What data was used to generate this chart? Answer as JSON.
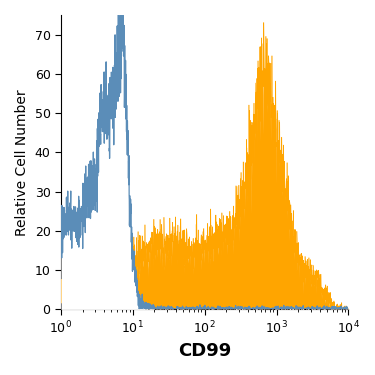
{
  "title": "",
  "xlabel": "CD99",
  "ylabel": "Relative Cell Number",
  "xlim_log": [
    1,
    10000
  ],
  "ylim": [
    0,
    75
  ],
  "yticks": [
    0,
    10,
    20,
    30,
    40,
    50,
    60,
    70
  ],
  "blue_color": "#5b8db8",
  "orange_color": "#FFA500",
  "xlabel_fontsize": 13,
  "ylabel_fontsize": 10,
  "tick_fontsize": 9,
  "seed": 12
}
